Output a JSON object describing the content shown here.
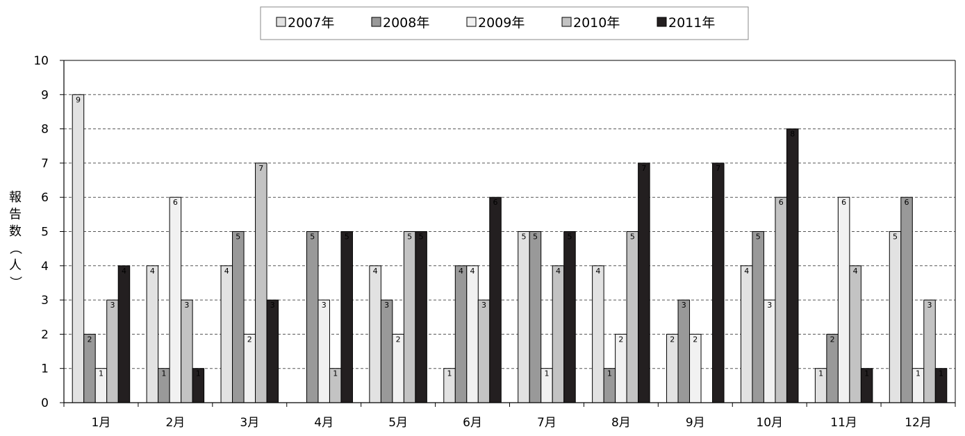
{
  "chart_data": {
    "type": "bar",
    "categories": [
      "1月",
      "2月",
      "3月",
      "4月",
      "5月",
      "6月",
      "7月",
      "8月",
      "9月",
      "10月",
      "11月",
      "12月"
    ],
    "series": [
      {
        "name": "2007年",
        "color": "#e2e2e2",
        "values": [
          9,
          4,
          4,
          0,
          4,
          1,
          5,
          4,
          2,
          4,
          1,
          5
        ]
      },
      {
        "name": "2008年",
        "color": "#999999",
        "values": [
          2,
          1,
          5,
          5,
          3,
          4,
          5,
          1,
          3,
          5,
          2,
          6
        ]
      },
      {
        "name": "2009年",
        "color": "#f1f1f1",
        "values": [
          1,
          6,
          2,
          3,
          2,
          4,
          1,
          2,
          2,
          3,
          6,
          1
        ]
      },
      {
        "name": "2010年",
        "color": "#c3c3c3",
        "values": [
          3,
          3,
          7,
          1,
          5,
          3,
          4,
          5,
          0,
          6,
          4,
          3
        ]
      },
      {
        "name": "2011年",
        "color": "#231f20",
        "values": [
          4,
          1,
          3,
          5,
          5,
          6,
          5,
          7,
          7,
          8,
          1,
          1
        ]
      }
    ],
    "ylabel": "報告数（人）",
    "ylim": [
      0,
      10
    ],
    "yticks": [
      0,
      1,
      2,
      3,
      4,
      5,
      6,
      7,
      8,
      9,
      10
    ],
    "grid": true,
    "legend_position": "top-center",
    "data_labels": true
  }
}
